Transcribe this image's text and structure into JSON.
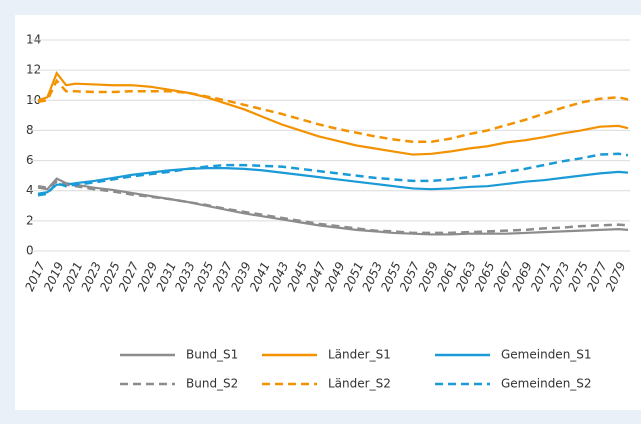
{
  "chart_data": {
    "type": "line",
    "x": [
      2017,
      2018,
      2019,
      2020,
      2021,
      2023,
      2025,
      2027,
      2029,
      2031,
      2033,
      2035,
      2037,
      2039,
      2041,
      2043,
      2045,
      2047,
      2049,
      2051,
      2053,
      2055,
      2057,
      2059,
      2061,
      2063,
      2065,
      2067,
      2069,
      2071,
      2073,
      2075,
      2077,
      2079,
      2080
    ],
    "series": [
      {
        "name": "Bund_S1",
        "color": "#8c8c8c",
        "dash": false,
        "values": [
          4.2,
          4.1,
          4.8,
          4.5,
          4.4,
          4.2,
          4.05,
          3.85,
          3.65,
          3.45,
          3.25,
          3.0,
          2.75,
          2.5,
          2.3,
          2.1,
          1.9,
          1.7,
          1.55,
          1.4,
          1.3,
          1.2,
          1.15,
          1.1,
          1.1,
          1.15,
          1.15,
          1.15,
          1.2,
          1.25,
          1.3,
          1.35,
          1.4,
          1.45,
          1.4
        ]
      },
      {
        "name": "Länder_S1",
        "color": "#f39200",
        "dash": false,
        "values": [
          10.0,
          10.2,
          11.8,
          11.0,
          11.1,
          11.05,
          11.0,
          11.0,
          10.9,
          10.7,
          10.5,
          10.2,
          9.8,
          9.4,
          8.9,
          8.4,
          8.0,
          7.6,
          7.3,
          7.0,
          6.8,
          6.6,
          6.4,
          6.45,
          6.6,
          6.8,
          6.95,
          7.2,
          7.35,
          7.55,
          7.8,
          8.0,
          8.25,
          8.3,
          8.15
        ]
      },
      {
        "name": "Gemeinden_S1",
        "color": "#1a9ad6",
        "dash": false,
        "values": [
          3.8,
          3.9,
          4.4,
          4.4,
          4.5,
          4.65,
          4.85,
          5.05,
          5.2,
          5.35,
          5.45,
          5.5,
          5.5,
          5.45,
          5.35,
          5.2,
          5.05,
          4.9,
          4.75,
          4.6,
          4.45,
          4.3,
          4.15,
          4.1,
          4.15,
          4.25,
          4.3,
          4.45,
          4.6,
          4.7,
          4.85,
          5.0,
          5.15,
          5.25,
          5.2
        ]
      },
      {
        "name": "Bund_S2",
        "color": "#8c8c8c",
        "dash": true,
        "values": [
          4.3,
          4.2,
          4.6,
          4.4,
          4.3,
          4.1,
          3.95,
          3.75,
          3.6,
          3.45,
          3.25,
          3.05,
          2.8,
          2.6,
          2.4,
          2.2,
          2.0,
          1.8,
          1.65,
          1.5,
          1.35,
          1.3,
          1.2,
          1.2,
          1.2,
          1.25,
          1.3,
          1.35,
          1.4,
          1.5,
          1.55,
          1.65,
          1.7,
          1.75,
          1.7
        ]
      },
      {
        "name": "Länder_S2",
        "color": "#f39200",
        "dash": true,
        "values": [
          9.9,
          10.0,
          11.3,
          10.6,
          10.6,
          10.55,
          10.55,
          10.6,
          10.6,
          10.6,
          10.5,
          10.25,
          10.0,
          9.7,
          9.4,
          9.1,
          8.75,
          8.4,
          8.1,
          7.85,
          7.6,
          7.4,
          7.25,
          7.25,
          7.45,
          7.75,
          8.0,
          8.35,
          8.7,
          9.1,
          9.5,
          9.85,
          10.1,
          10.2,
          10.05
        ]
      },
      {
        "name": "Gemeinden_S2",
        "color": "#1a9ad6",
        "dash": true,
        "values": [
          3.7,
          3.8,
          4.5,
          4.3,
          4.4,
          4.55,
          4.75,
          4.95,
          5.1,
          5.25,
          5.45,
          5.6,
          5.7,
          5.7,
          5.65,
          5.6,
          5.45,
          5.3,
          5.15,
          5.0,
          4.85,
          4.75,
          4.65,
          4.65,
          4.75,
          4.9,
          5.05,
          5.25,
          5.45,
          5.7,
          5.95,
          6.15,
          6.4,
          6.45,
          6.35
        ]
      }
    ],
    "xlim": [
      2017,
      2080
    ],
    "xticks": [
      2017,
      2019,
      2021,
      2023,
      2025,
      2027,
      2029,
      2031,
      2033,
      2035,
      2037,
      2039,
      2041,
      2043,
      2045,
      2047,
      2049,
      2051,
      2053,
      2055,
      2057,
      2059,
      2061,
      2063,
      2065,
      2067,
      2069,
      2071,
      2073,
      2075,
      2077,
      2079
    ],
    "ylim": [
      0,
      14
    ],
    "yticks": [
      0,
      2,
      4,
      6,
      8,
      10,
      12,
      14
    ],
    "grid": true
  }
}
